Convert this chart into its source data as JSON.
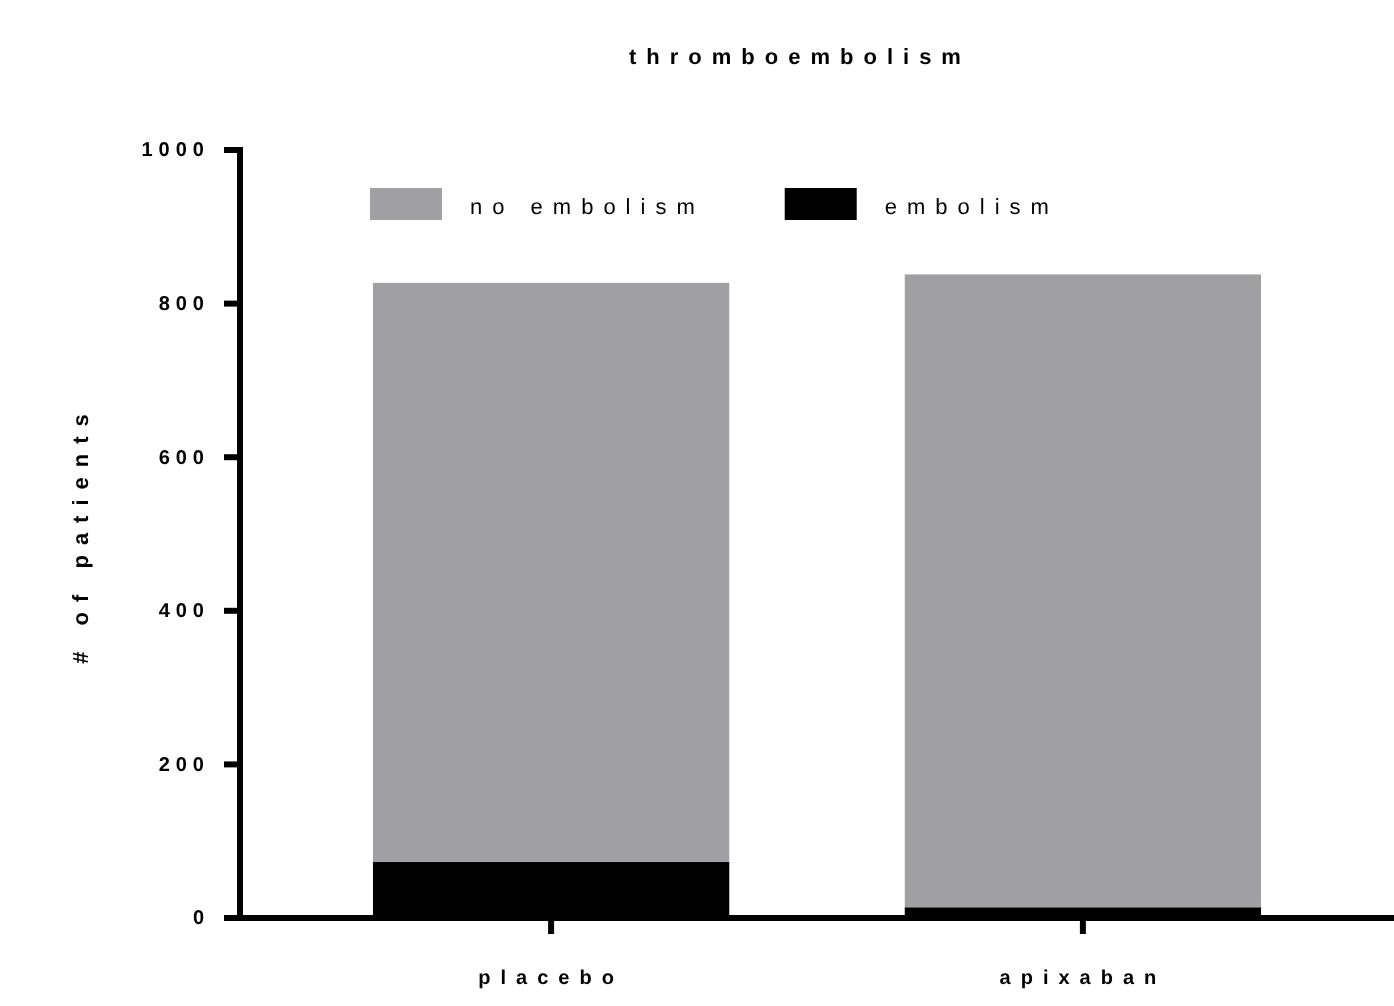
{
  "chart_data": {
    "type": "bar",
    "title": "thromboembolism",
    "ylabel": "# of patients",
    "categories": [
      "placebo",
      "apixaban"
    ],
    "stacked": true,
    "legend": "top",
    "ylim": [
      0,
      1000
    ],
    "yticks": [
      0,
      200,
      400,
      600,
      800,
      1000
    ],
    "series": [
      {
        "name": "embolism",
        "color": "#000000",
        "values": [
          73,
          14
        ]
      },
      {
        "name": "no embolism",
        "color": "#a09fa4",
        "values": [
          754,
          824
        ]
      }
    ]
  }
}
